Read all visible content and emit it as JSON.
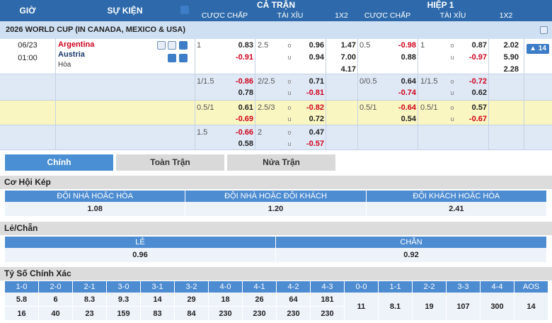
{
  "header": {
    "time": "GIỜ",
    "event": "SỰ KIỆN",
    "full_match": "CẢ TRẬN",
    "first_half": "HIỆP 1",
    "columns": [
      "CƯỢC CHẤP",
      "TÀI XỈU",
      "1X2",
      "CƯỢC CHẤP",
      "TÀI XỈU",
      "1X2"
    ]
  },
  "league": "2026 WORLD CUP (IN CANADA, MEXICO & USA)",
  "match": {
    "date": "06/23",
    "time": "01:00",
    "home": "Argentina",
    "away": "Austria",
    "draw": "Hòa",
    "more_markets": "14"
  },
  "odds_marks": {
    "over": "o",
    "under": "u"
  },
  "odds_rows": [
    {
      "full": {
        "handicap": "1",
        "handicap_home": "0.83",
        "handicap_away": "-0.91",
        "total": "2.5",
        "over": "0.96",
        "under": "0.94",
        "1x2": [
          "1.47",
          "7.00",
          "4.17"
        ]
      },
      "half": {
        "handicap": "0.5",
        "handicap_home": "-0.98",
        "handicap_away": "0.88",
        "total": "1",
        "over": "0.87",
        "under": "-0.97",
        "1x2": [
          "2.02",
          "5.90",
          "2.28"
        ]
      }
    },
    {
      "full": {
        "handicap": "1/1.5",
        "handicap_home": "-0.86",
        "handicap_away": "0.78",
        "total": "2/2.5",
        "over": "0.71",
        "under": "-0.81"
      },
      "half": {
        "handicap": "0/0.5",
        "handicap_home": "0.64",
        "handicap_away": "-0.74",
        "total": "1/1.5",
        "over": "-0.72",
        "under": "0.62"
      }
    },
    {
      "full": {
        "handicap": "0.5/1",
        "handicap_home": "0.61",
        "handicap_away": "-0.69",
        "total": "2.5/3",
        "over": "-0.82",
        "under": "0.72"
      },
      "half": {
        "handicap": "0.5/1",
        "handicap_home": "-0.64",
        "handicap_away": "0.54",
        "total": "0.5/1",
        "over": "0.57",
        "under": "-0.67"
      }
    },
    {
      "full": {
        "handicap": "1.5",
        "handicap_home": "-0.66",
        "handicap_away": "0.58",
        "total": "2",
        "over": "0.47",
        "under": "-0.57"
      }
    }
  ],
  "tabs": [
    "Chính",
    "Toàn Trận",
    "Nửa Trận"
  ],
  "double_chance": {
    "title": "Cơ Hội Kép",
    "headers": [
      "ĐỘI NHÀ HOẶC HÒA",
      "ĐỘI NHÀ HOẶC ĐỘI KHÁCH",
      "ĐỘI KHÁCH HOẶC HÒA"
    ],
    "values": [
      "1.08",
      "1.20",
      "2.41"
    ]
  },
  "odd_even": {
    "title": "Lẻ/Chẵn",
    "headers": [
      "LẺ",
      "CHẴN"
    ],
    "values": [
      "0.96",
      "0.92"
    ]
  },
  "correct_score": {
    "title": "Tỷ Số Chính Xác",
    "win_scores": [
      "1-0",
      "2-0",
      "2-1",
      "3-0",
      "3-1",
      "3-2",
      "4-0",
      "4-1",
      "4-2",
      "4-3"
    ],
    "home_win": [
      "5.8",
      "6",
      "8.3",
      "9.3",
      "14",
      "29",
      "18",
      "26",
      "64",
      "181"
    ],
    "away_win": [
      "16",
      "40",
      "23",
      "159",
      "83",
      "84",
      "230",
      "230",
      "230",
      "230"
    ],
    "draw_scores": [
      "0-0",
      "1-1",
      "2-2",
      "3-3",
      "4-4",
      "AOS"
    ],
    "draw_values": [
      "11",
      "8.1",
      "19",
      "107",
      "300",
      "14"
    ]
  }
}
